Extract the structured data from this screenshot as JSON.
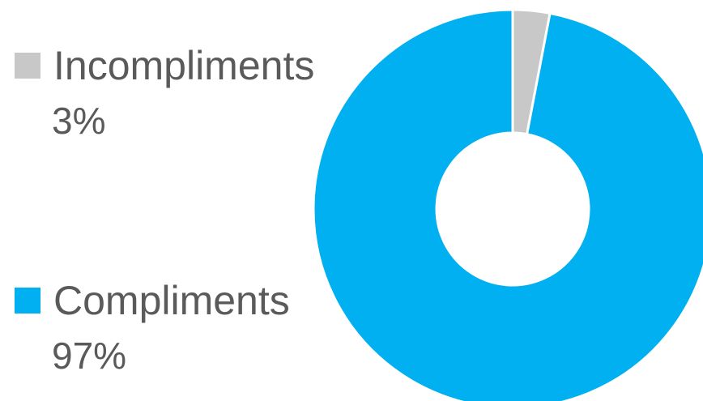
{
  "chart_data": {
    "type": "pie",
    "subtype": "donut",
    "legend_position": "left",
    "series": [
      {
        "name": "Incompliments",
        "value": 3,
        "label": "3%",
        "color": "#c8c8c8"
      },
      {
        "name": "Compliments",
        "value": 97,
        "label": "97%",
        "color": "#00b0f0"
      }
    ]
  }
}
